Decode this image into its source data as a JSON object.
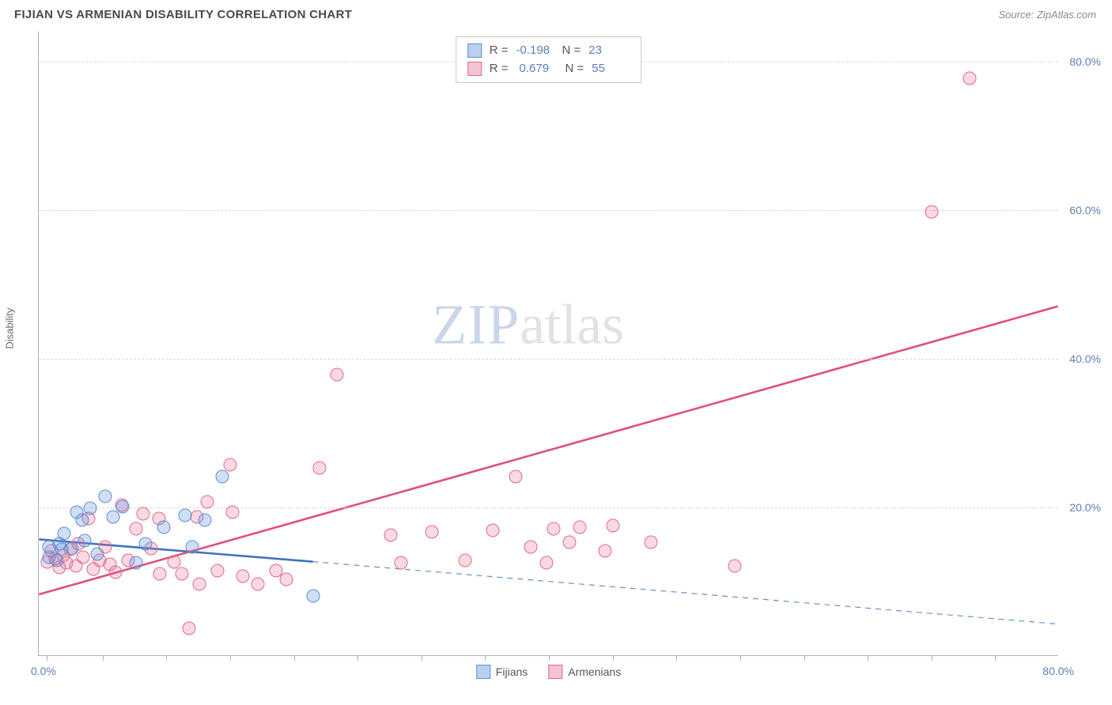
{
  "title": "FIJIAN VS ARMENIAN DISABILITY CORRELATION CHART",
  "source_prefix": "Source: ",
  "source_name": "ZipAtlas.com",
  "y_axis_label": "Disability",
  "watermark": {
    "part1": "ZIP",
    "part2": "atlas"
  },
  "chart": {
    "type": "scatter",
    "background_color": "#ffffff",
    "grid_color": "#d8d8d8",
    "axis_color": "#b0b0b0",
    "xlim": [
      0,
      80
    ],
    "ylim": [
      0,
      84
    ],
    "x_min_label": "0.0%",
    "x_max_label": "80.0%",
    "x_ticks": [
      0.63,
      5,
      10,
      15,
      20,
      25,
      30,
      35,
      40,
      45,
      50,
      55,
      60,
      65,
      70,
      75
    ],
    "y_gridlines": [
      20,
      40,
      60,
      80
    ],
    "y_tick_labels": [
      "20.0%",
      "40.0%",
      "60.0%",
      "80.0%"
    ],
    "tick_label_color": "#5b7fb8",
    "tick_label_fontsize": 14,
    "marker_size": 17,
    "series": [
      {
        "name": "Fijians",
        "fill": "rgba(100,150,220,0.30)",
        "stroke": "#5b8fd6",
        "legend_fill": "#b9d1ef",
        "R": "-0.198",
        "N": "23",
        "trend": {
          "solid": {
            "x1": 0,
            "y1": 15.6,
            "x2": 21.5,
            "y2": 12.6,
            "color": "#3f72c0",
            "width": 2.6
          },
          "dashed": {
            "x1": 21.5,
            "y1": 12.6,
            "x2": 80,
            "y2": 4.2,
            "color": "#6a8fc8",
            "width": 1.2,
            "dash": "7,6"
          }
        },
        "points": [
          [
            0.8,
            13.2
          ],
          [
            0.8,
            14.6
          ],
          [
            1.4,
            12.8
          ],
          [
            1.6,
            15.0
          ],
          [
            1.8,
            14.2
          ],
          [
            2.0,
            16.4
          ],
          [
            2.6,
            14.4
          ],
          [
            3.0,
            19.3
          ],
          [
            3.4,
            18.2
          ],
          [
            3.6,
            15.4
          ],
          [
            4.0,
            19.8
          ],
          [
            4.6,
            13.6
          ],
          [
            5.2,
            21.4
          ],
          [
            5.8,
            18.6
          ],
          [
            6.6,
            20.0
          ],
          [
            7.6,
            12.4
          ],
          [
            8.4,
            15.0
          ],
          [
            9.8,
            17.2
          ],
          [
            11.5,
            18.8
          ],
          [
            12.0,
            14.6
          ],
          [
            13.0,
            18.2
          ],
          [
            14.4,
            24.0
          ],
          [
            21.5,
            8.0
          ]
        ]
      },
      {
        "name": "Armenians",
        "fill": "rgba(235,105,140,0.25)",
        "stroke": "#e06a8c",
        "legend_fill": "#f4c4d1",
        "R": "0.679",
        "N": "55",
        "trend": {
          "solid": {
            "x1": 0,
            "y1": 8.2,
            "x2": 80,
            "y2": 47.0,
            "color": "#e14f7a",
            "width": 2.6
          }
        },
        "points": [
          [
            0.7,
            12.6
          ],
          [
            1.0,
            14.0
          ],
          [
            1.3,
            13.0
          ],
          [
            1.6,
            11.8
          ],
          [
            1.9,
            13.4
          ],
          [
            2.2,
            12.4
          ],
          [
            2.5,
            14.2
          ],
          [
            2.9,
            12.0
          ],
          [
            3.1,
            15.0
          ],
          [
            3.5,
            13.2
          ],
          [
            3.9,
            18.4
          ],
          [
            4.3,
            11.6
          ],
          [
            4.8,
            12.8
          ],
          [
            5.2,
            14.6
          ],
          [
            5.6,
            12.2
          ],
          [
            6.0,
            11.2
          ],
          [
            6.5,
            20.2
          ],
          [
            7.0,
            12.8
          ],
          [
            7.6,
            17.0
          ],
          [
            8.2,
            19.0
          ],
          [
            8.8,
            14.4
          ],
          [
            9.4,
            18.4
          ],
          [
            9.5,
            11.0
          ],
          [
            10.6,
            12.6
          ],
          [
            11.2,
            11.0
          ],
          [
            11.8,
            3.6
          ],
          [
            12.4,
            18.6
          ],
          [
            12.6,
            9.6
          ],
          [
            13.2,
            20.6
          ],
          [
            14.0,
            11.4
          ],
          [
            15.0,
            25.6
          ],
          [
            15.2,
            19.2
          ],
          [
            16.0,
            10.6
          ],
          [
            17.2,
            9.6
          ],
          [
            18.6,
            11.4
          ],
          [
            19.4,
            10.2
          ],
          [
            22.0,
            25.2
          ],
          [
            23.4,
            37.8
          ],
          [
            27.6,
            16.2
          ],
          [
            28.4,
            12.4
          ],
          [
            30.8,
            16.6
          ],
          [
            33.4,
            12.8
          ],
          [
            35.6,
            16.8
          ],
          [
            37.4,
            24.0
          ],
          [
            38.6,
            14.6
          ],
          [
            39.8,
            12.4
          ],
          [
            40.4,
            17.0
          ],
          [
            41.6,
            15.2
          ],
          [
            42.4,
            17.2
          ],
          [
            44.4,
            14.0
          ],
          [
            45.0,
            17.4
          ],
          [
            48.0,
            15.2
          ],
          [
            54.6,
            12.0
          ],
          [
            70.0,
            59.6
          ],
          [
            73.0,
            77.6
          ]
        ]
      }
    ],
    "legend_bottom": [
      {
        "label": "Fijians",
        "fill": "#b9d1ef",
        "stroke": "#5b8fd6"
      },
      {
        "label": "Armenians",
        "fill": "#f4c4d1",
        "stroke": "#e06a8c"
      }
    ]
  }
}
